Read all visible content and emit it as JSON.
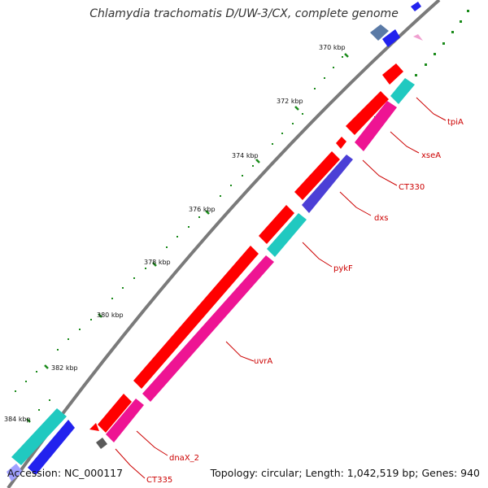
{
  "title": "Chlamydia trachomatis D/UW-3/CX, complete genome",
  "footer": {
    "accession": "Accession: NC_000117",
    "summary": "Topology: circular; Length: 1,042,519 bp; Genes: 940"
  },
  "ticks": [
    "370 kbp",
    "372 kbp",
    "374 kbp",
    "376 kbp",
    "378 kbp",
    "380 kbp",
    "382 kbp",
    "384 kbp"
  ],
  "genes": [
    "tpiA",
    "xseA",
    "CT330",
    "dxs",
    "pykF",
    "uvrA",
    "dnaX_2",
    "CT335"
  ],
  "colors": {
    "backbone": "#7a7a7a",
    "forward_cds": "#ff0000",
    "reverse_cds": "#ee1493",
    "teal_feature": "#20c9c0",
    "blue_feature": "#2222ee",
    "tick_marks": "#228b22",
    "label_lines": "#cc0000"
  }
}
